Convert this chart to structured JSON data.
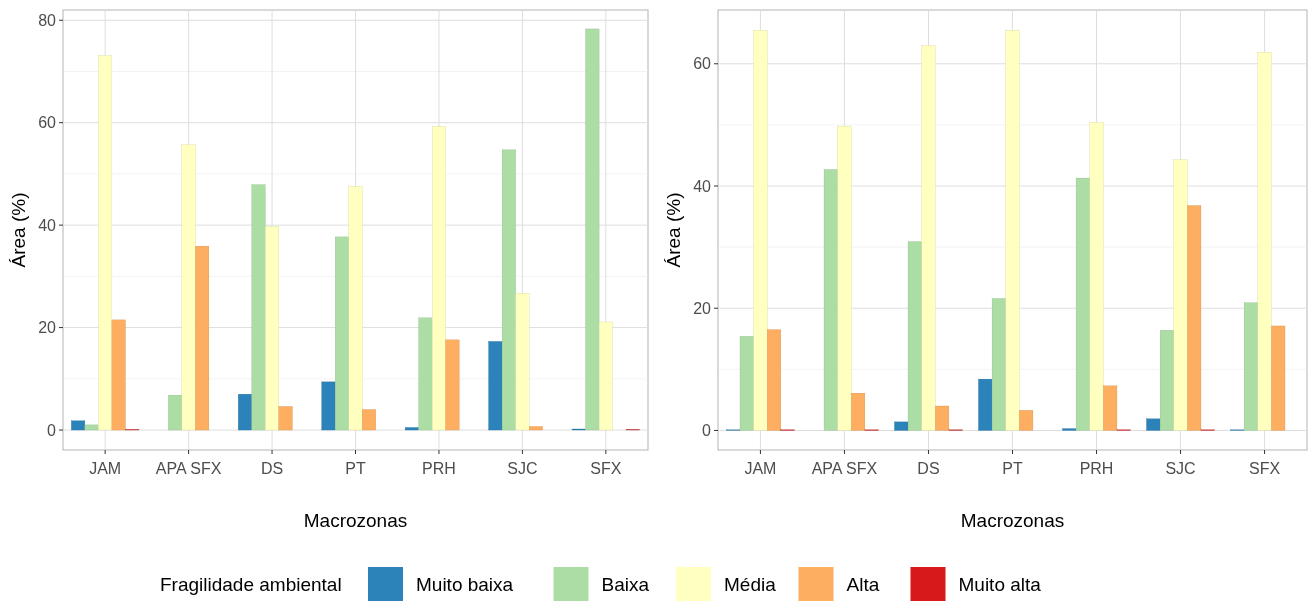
{
  "chart_data": [
    {
      "type": "bar",
      "xlabel": "Macrozonas",
      "ylabel": "Área (%)",
      "legend_title": "Fragilidade ambiental",
      "legend": "bottom",
      "grid": true,
      "categories": [
        "JAM",
        "APA SFX",
        "DS",
        "PT",
        "PRH",
        "SJC",
        "SFX"
      ],
      "ylim": [
        -3.9,
        82
      ],
      "yticks": [
        0,
        20,
        40,
        60,
        80
      ],
      "series": [
        {
          "name": "Muito baixa",
          "color": "#2b83ba",
          "values": [
            1.8,
            0,
            7.0,
            9.4,
            0.5,
            17.3,
            0.2
          ]
        },
        {
          "name": "Baixa",
          "color": "#abdda4",
          "values": [
            1.0,
            6.8,
            47.9,
            37.7,
            21.9,
            54.7,
            78.3
          ]
        },
        {
          "name": "Média",
          "color": "#ffffbf",
          "values": [
            73.1,
            55.7,
            39.8,
            47.6,
            59.3,
            26.7,
            21.1
          ]
        },
        {
          "name": "Alta",
          "color": "#fdae61",
          "values": [
            21.5,
            35.9,
            4.6,
            4.0,
            17.6,
            0.7,
            0
          ]
        },
        {
          "name": "Muito alta",
          "color": "#d7191c",
          "values": [
            0.1,
            0,
            0,
            0,
            0,
            0,
            0.1
          ]
        }
      ]
    },
    {
      "type": "bar",
      "xlabel": "Macrozonas",
      "ylabel": "Área (%)",
      "grid": true,
      "categories": [
        "JAM",
        "APA SFX",
        "DS",
        "PT",
        "PRH",
        "SJC",
        "SFX"
      ],
      "ylim": [
        -3.2,
        68.8
      ],
      "yticks": [
        0,
        20,
        40,
        60
      ],
      "series": [
        {
          "color": "#2b83ba",
          "values": [
            0.1,
            0,
            1.4,
            8.4,
            0.3,
            1.9,
            0.1
          ]
        },
        {
          "color": "#abdda4",
          "values": [
            15.4,
            42.7,
            30.9,
            21.6,
            41.3,
            16.4,
            20.9
          ]
        },
        {
          "color": "#ffffbf",
          "values": [
            65.5,
            49.8,
            63.0,
            65.5,
            50.4,
            44.3,
            61.9
          ]
        },
        {
          "color": "#fdae61",
          "values": [
            16.5,
            6.1,
            4.0,
            3.3,
            7.3,
            36.8,
            17.1
          ]
        },
        {
          "color": "#d7191c",
          "values": [
            0.1,
            0.1,
            0.1,
            0,
            0.1,
            0.1,
            0
          ]
        }
      ]
    }
  ]
}
